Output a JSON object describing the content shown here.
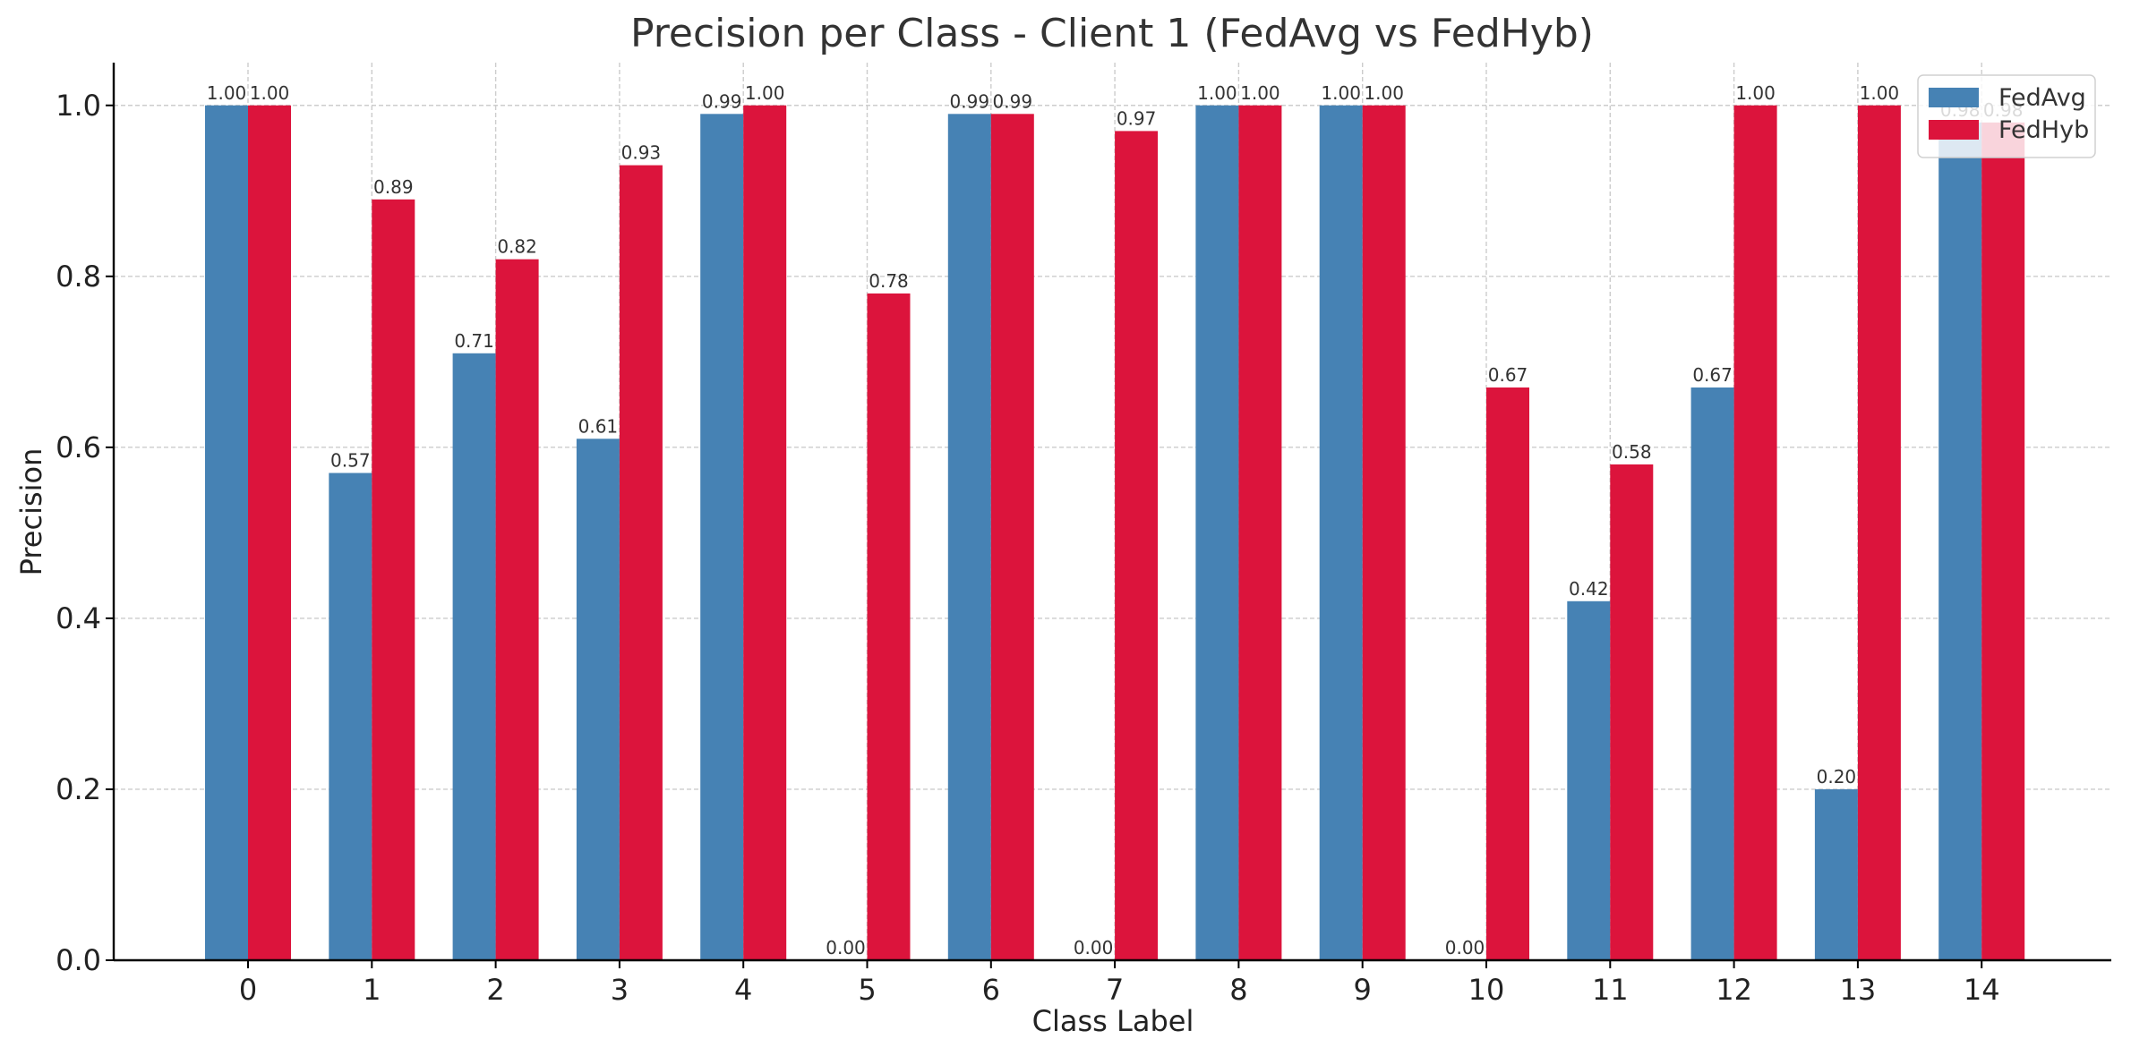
{
  "chart_data": {
    "type": "bar",
    "title": "Precision per Class - Client 1 (FedAvg vs FedHyb)",
    "xlabel": "Class Label",
    "ylabel": "Precision",
    "ylim": [
      0,
      1.05
    ],
    "yticks": [
      "0.0",
      "0.2",
      "0.4",
      "0.6",
      "0.8",
      "1.0"
    ],
    "categories": [
      "0",
      "1",
      "2",
      "3",
      "4",
      "5",
      "6",
      "7",
      "8",
      "9",
      "10",
      "11",
      "12",
      "13",
      "14"
    ],
    "grid": true,
    "legend_position": "top-right",
    "series": [
      {
        "name": "FedAvg",
        "color": "#4682b4",
        "values": [
          1.0,
          0.57,
          0.71,
          0.61,
          0.99,
          0.0,
          0.99,
          0.0,
          1.0,
          1.0,
          0.0,
          0.42,
          0.67,
          0.2,
          0.98
        ],
        "labels": [
          "1.00",
          "0.57",
          "0.71",
          "0.61",
          "0.99",
          "0.00",
          "0.99",
          "0.00",
          "1.00",
          "1.00",
          "0.00",
          "0.42",
          "0.67",
          "0.20",
          "0.98"
        ]
      },
      {
        "name": "FedHyb",
        "color": "#dc143c",
        "values": [
          1.0,
          0.89,
          0.82,
          0.93,
          1.0,
          0.78,
          0.99,
          0.97,
          1.0,
          1.0,
          0.67,
          0.58,
          1.0,
          1.0,
          0.98
        ],
        "labels": [
          "1.00",
          "0.89",
          "0.82",
          "0.93",
          "1.00",
          "0.78",
          "0.99",
          "0.97",
          "1.00",
          "1.00",
          "0.67",
          "0.58",
          "1.00",
          "1.00",
          "0.98"
        ]
      }
    ]
  }
}
